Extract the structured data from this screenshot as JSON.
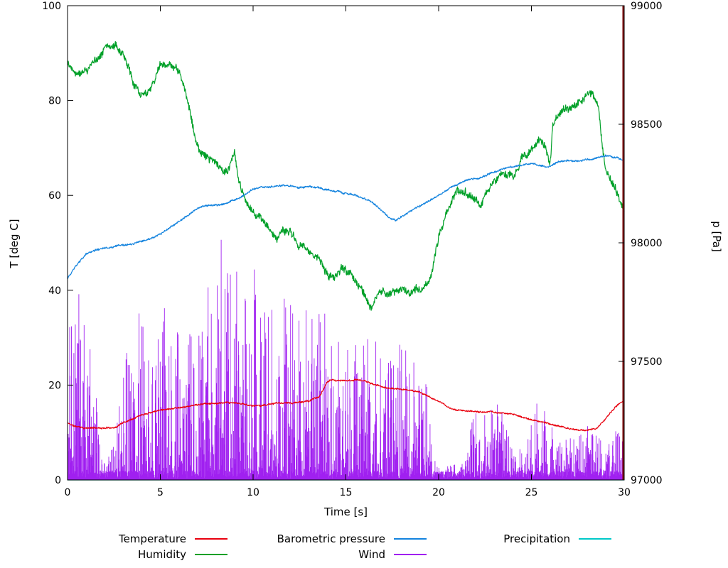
{
  "chart_data": {
    "type": "line",
    "title": "",
    "xlabel": "Time [s]",
    "ylabel_left": "T [deg C]",
    "ylabel_right": "p [Pa]",
    "xlim": [
      0,
      30
    ],
    "ylim_left": [
      0,
      100
    ],
    "ylim_right": [
      97000,
      99000
    ],
    "xticks": [
      0,
      5,
      10,
      15,
      20,
      25,
      30
    ],
    "yticks_left": [
      0,
      20,
      40,
      60,
      80,
      100
    ],
    "yticks_right": [
      97000,
      97500,
      98000,
      98500,
      99000
    ],
    "grid": false,
    "legend_position": "bottom",
    "series": [
      {
        "key": "precipitation",
        "name": "Precipitation",
        "color": "#00c8c8",
        "axis": "left",
        "style": "line",
        "noise": 0,
        "seed": 5,
        "points": [
          [
            0,
            0
          ],
          [
            30,
            0
          ]
        ]
      },
      {
        "key": "wind",
        "name": "Wind",
        "color": "#a020f0",
        "axis": "left",
        "style": "spikes",
        "seed": 44,
        "base": 2,
        "envelope": [
          [
            0,
            30
          ],
          [
            0.4,
            46
          ],
          [
            0.8,
            40
          ],
          [
            1.2,
            32
          ],
          [
            1.6,
            18
          ],
          [
            1.9,
            6
          ],
          [
            2.2,
            5
          ],
          [
            2.6,
            10
          ],
          [
            3,
            24
          ],
          [
            3.4,
            34
          ],
          [
            3.8,
            40
          ],
          [
            4.2,
            30
          ],
          [
            4.6,
            28
          ],
          [
            5,
            32
          ],
          [
            5.4,
            44
          ],
          [
            5.8,
            36
          ],
          [
            6.2,
            30
          ],
          [
            6.6,
            34
          ],
          [
            7,
            38
          ],
          [
            7.4,
            42
          ],
          [
            7.8,
            44
          ],
          [
            8.2,
            46
          ],
          [
            8.6,
            48
          ],
          [
            9,
            48
          ],
          [
            9.4,
            42
          ],
          [
            9.8,
            38
          ],
          [
            10.2,
            42
          ],
          [
            10.6,
            40
          ],
          [
            11,
            38
          ],
          [
            11.4,
            40
          ],
          [
            11.8,
            42
          ],
          [
            12.2,
            40
          ],
          [
            12.6,
            38
          ],
          [
            13,
            38
          ],
          [
            13.4,
            36
          ],
          [
            13.8,
            32
          ],
          [
            14.2,
            30
          ],
          [
            14.6,
            32
          ],
          [
            15,
            28
          ],
          [
            15.4,
            30
          ],
          [
            15.8,
            34
          ],
          [
            16.2,
            32
          ],
          [
            16.6,
            30
          ],
          [
            17,
            30
          ],
          [
            17.4,
            28
          ],
          [
            17.8,
            30
          ],
          [
            18.2,
            28
          ],
          [
            18.6,
            26
          ],
          [
            19,
            26
          ],
          [
            19.4,
            20
          ],
          [
            19.7,
            8
          ],
          [
            20,
            3
          ],
          [
            20.5,
            3
          ],
          [
            21,
            4
          ],
          [
            21.5,
            8
          ],
          [
            21.9,
            14
          ],
          [
            22.3,
            16
          ],
          [
            22.7,
            14
          ],
          [
            23.1,
            18
          ],
          [
            23.5,
            14
          ],
          [
            23.9,
            10
          ],
          [
            24.3,
            7
          ],
          [
            24.7,
            8
          ],
          [
            25.1,
            12
          ],
          [
            25.5,
            22
          ],
          [
            25.9,
            16
          ],
          [
            26.3,
            10
          ],
          [
            26.7,
            8
          ],
          [
            27.1,
            9
          ],
          [
            27.5,
            11
          ],
          [
            28,
            12
          ],
          [
            28.4,
            10
          ],
          [
            28.8,
            9
          ],
          [
            29.2,
            8
          ],
          [
            29.6,
            11
          ],
          [
            30,
            12
          ]
        ]
      },
      {
        "key": "humidity",
        "name": "Humidity",
        "color": "#00a028",
        "axis": "left",
        "style": "line",
        "noise": 1.5,
        "seed": 22,
        "points": [
          [
            0,
            88
          ],
          [
            0.5,
            87
          ],
          [
            1,
            87.5
          ],
          [
            1.5,
            88.5
          ],
          [
            2,
            92
          ],
          [
            2.3,
            92.5
          ],
          [
            2.6,
            93
          ],
          [
            3,
            90
          ],
          [
            3.5,
            84.5
          ],
          [
            4,
            82
          ],
          [
            4.5,
            84
          ],
          [
            5,
            88
          ],
          [
            5.3,
            87.5
          ],
          [
            5.6,
            86.5
          ],
          [
            6,
            85.5
          ],
          [
            6.4,
            80
          ],
          [
            6.8,
            73
          ],
          [
            7.2,
            69
          ],
          [
            7.6,
            67
          ],
          [
            8,
            65.5
          ],
          [
            8.4,
            64
          ],
          [
            8.8,
            66
          ],
          [
            9,
            68
          ],
          [
            9.2,
            62
          ],
          [
            9.5,
            58.5
          ],
          [
            10,
            56.5
          ],
          [
            10.5,
            55
          ],
          [
            11,
            52.5
          ],
          [
            11.3,
            50.5
          ],
          [
            11.6,
            52.5
          ],
          [
            12,
            53
          ],
          [
            12.4,
            50
          ],
          [
            12.8,
            49
          ],
          [
            13.2,
            47.5
          ],
          [
            13.6,
            45.5
          ],
          [
            14,
            43
          ],
          [
            14.4,
            42
          ],
          [
            14.8,
            43.5
          ],
          [
            15.2,
            42.5
          ],
          [
            15.6,
            41.5
          ],
          [
            16,
            39.5
          ],
          [
            16.3,
            37
          ],
          [
            16.6,
            38.5
          ],
          [
            17,
            39.5
          ],
          [
            17.5,
            39
          ],
          [
            18,
            40
          ],
          [
            18.5,
            40
          ],
          [
            19,
            40.5
          ],
          [
            19.4,
            41.5
          ],
          [
            19.7,
            45
          ],
          [
            20,
            52
          ],
          [
            20.4,
            57
          ],
          [
            20.8,
            60
          ],
          [
            21.2,
            62
          ],
          [
            21.6,
            61.5
          ],
          [
            22,
            59.5
          ],
          [
            22.3,
            57.5
          ],
          [
            22.6,
            59.5
          ],
          [
            23,
            62
          ],
          [
            23.4,
            63.5
          ],
          [
            23.8,
            64.5
          ],
          [
            24.2,
            66
          ],
          [
            24.6,
            68.5
          ],
          [
            25,
            70.5
          ],
          [
            25.4,
            72
          ],
          [
            25.7,
            71
          ],
          [
            26,
            67
          ],
          [
            26.15,
            75
          ],
          [
            26.4,
            76.5
          ],
          [
            26.8,
            77.5
          ],
          [
            27.2,
            78.5
          ],
          [
            27.6,
            79.5
          ],
          [
            28,
            81
          ],
          [
            28.3,
            80.5
          ],
          [
            28.6,
            78
          ],
          [
            28.8,
            70
          ],
          [
            29,
            65
          ],
          [
            29.3,
            62
          ],
          [
            29.6,
            59.5
          ],
          [
            30,
            55.5
          ]
        ]
      },
      {
        "key": "pressure",
        "name": "Barometric pressure",
        "color": "#1383de",
        "axis": "right",
        "style": "line",
        "noise": 7,
        "seed": 33,
        "points": [
          [
            0,
            97850
          ],
          [
            0.5,
            97905
          ],
          [
            1,
            97950
          ],
          [
            1.5,
            97968
          ],
          [
            2,
            97976
          ],
          [
            3,
            97986
          ],
          [
            4,
            98000
          ],
          [
            4.5,
            98012
          ],
          [
            5,
            98032
          ],
          [
            5.5,
            98060
          ],
          [
            6,
            98092
          ],
          [
            6.5,
            98112
          ],
          [
            7,
            98140
          ],
          [
            7.5,
            98152
          ],
          [
            8,
            98156
          ],
          [
            8.5,
            98162
          ],
          [
            9,
            98180
          ],
          [
            9.5,
            98200
          ],
          [
            10,
            98220
          ],
          [
            10.5,
            98230
          ],
          [
            11,
            98236
          ],
          [
            12,
            98240
          ],
          [
            12.5,
            98235
          ],
          [
            13,
            98240
          ],
          [
            13.5,
            98236
          ],
          [
            14,
            98226
          ],
          [
            14.5,
            98216
          ],
          [
            15,
            98210
          ],
          [
            15.5,
            98200
          ],
          [
            16,
            98182
          ],
          [
            16.5,
            98160
          ],
          [
            17,
            98130
          ],
          [
            17.4,
            98108
          ],
          [
            17.7,
            98100
          ],
          [
            18,
            98110
          ],
          [
            18.5,
            98130
          ],
          [
            19,
            98150
          ],
          [
            19.5,
            98172
          ],
          [
            20,
            98200
          ],
          [
            20.5,
            98222
          ],
          [
            21,
            98242
          ],
          [
            21.5,
            98262
          ],
          [
            22,
            98272
          ],
          [
            22.5,
            98282
          ],
          [
            23,
            98300
          ],
          [
            23.5,
            98312
          ],
          [
            24,
            98322
          ],
          [
            24.5,
            98332
          ],
          [
            25,
            98340
          ],
          [
            25.5,
            98332
          ],
          [
            26,
            98322
          ],
          [
            26.3,
            98336
          ],
          [
            26.6,
            98342
          ],
          [
            27,
            98346
          ],
          [
            27.5,
            98340
          ],
          [
            28,
            98346
          ],
          [
            28.5,
            98352
          ],
          [
            29,
            98362
          ],
          [
            29.4,
            98356
          ],
          [
            29.7,
            98352
          ],
          [
            30,
            98346
          ]
        ]
      },
      {
        "key": "temperature",
        "name": "Temperature",
        "color": "#e8000e",
        "axis": "left",
        "style": "line",
        "noise": 0.3,
        "seed": 11,
        "points": [
          [
            0,
            12
          ],
          [
            0.4,
            11.3
          ],
          [
            1,
            11
          ],
          [
            2,
            11
          ],
          [
            2.6,
            11.3
          ],
          [
            3,
            12.3
          ],
          [
            4,
            14
          ],
          [
            5,
            15
          ],
          [
            6,
            15.5
          ],
          [
            7,
            16
          ],
          [
            8,
            16.2
          ],
          [
            9,
            16
          ],
          [
            10,
            15.5
          ],
          [
            11,
            16
          ],
          [
            12,
            16
          ],
          [
            13,
            16.4
          ],
          [
            13.6,
            17.5
          ],
          [
            14,
            20.5
          ],
          [
            14.3,
            21
          ],
          [
            15,
            20.9
          ],
          [
            15.5,
            21.2
          ],
          [
            16,
            21
          ],
          [
            16.5,
            20.2
          ],
          [
            17,
            19.6
          ],
          [
            18,
            19
          ],
          [
            19,
            18.5
          ],
          [
            19.5,
            17.6
          ],
          [
            20,
            16.6
          ],
          [
            20.5,
            15.1
          ],
          [
            21,
            14.6
          ],
          [
            22,
            14.5
          ],
          [
            23,
            14.1
          ],
          [
            24,
            13.9
          ],
          [
            24.5,
            13.1
          ],
          [
            25,
            12.6
          ],
          [
            26,
            11.6
          ],
          [
            27,
            10.9
          ],
          [
            27.5,
            10.6
          ],
          [
            28,
            10.5
          ],
          [
            28.5,
            11
          ],
          [
            29,
            13
          ],
          [
            29.5,
            15.3
          ],
          [
            30,
            16.5
          ]
        ]
      }
    ],
    "annotation": {
      "type": "vline",
      "x": 30,
      "color": "#800000"
    }
  },
  "legend": {
    "rows": [
      [
        {
          "key": "temperature",
          "label": "Temperature"
        },
        {
          "key": "pressure",
          "label": "Barometric pressure"
        },
        {
          "key": "precipitation",
          "label": "Precipitation"
        }
      ],
      [
        {
          "key": "humidity",
          "label": "Humidity"
        },
        {
          "key": "wind",
          "label": "Wind"
        }
      ]
    ]
  }
}
